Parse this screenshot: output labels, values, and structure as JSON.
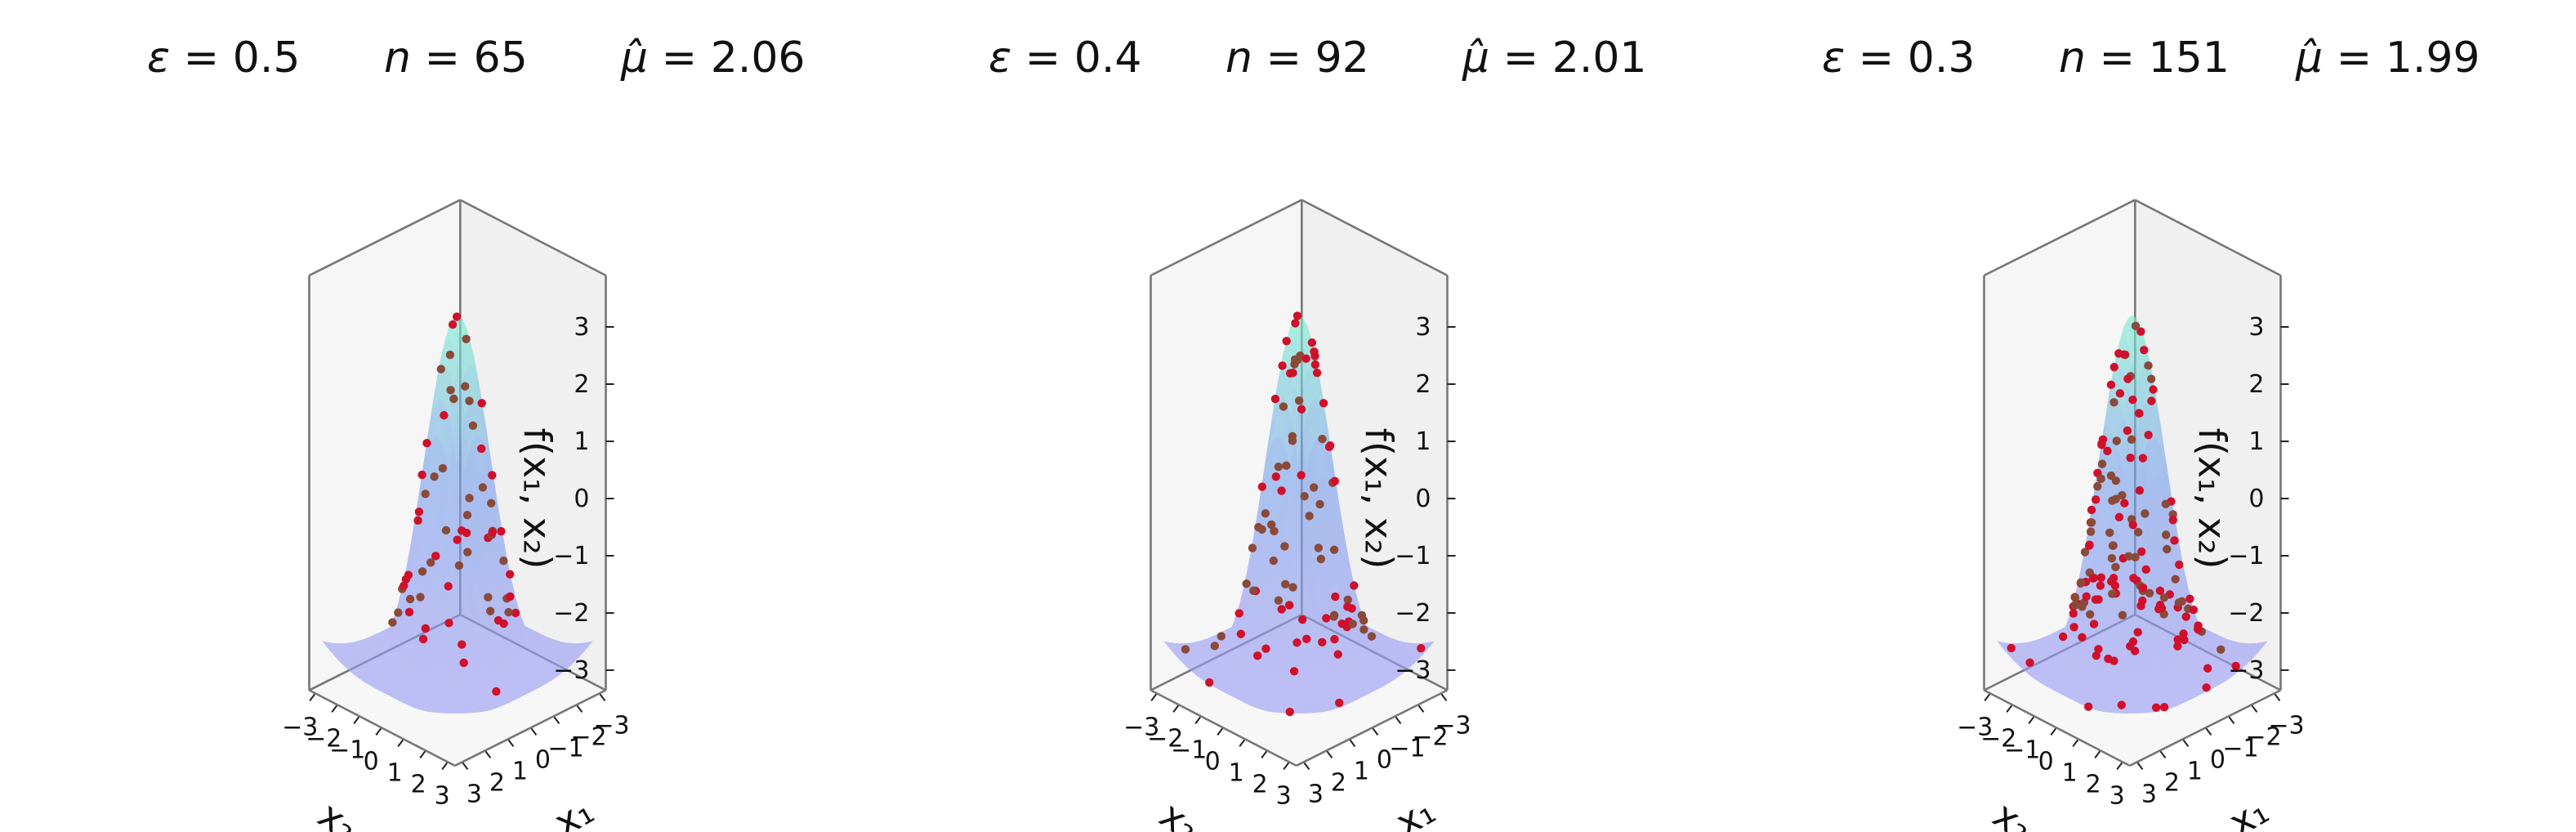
{
  "chart_data": [
    {
      "type": "surface3d",
      "title": {
        "eps": "0.5",
        "n": "65",
        "mu": "2.06"
      },
      "xlabel": "x₁",
      "ylabel": "x₂",
      "zlabel": "f(x₁, x₂)",
      "x_ticks": [
        "−3",
        "−2",
        "−1",
        "0",
        "1",
        "2",
        "3"
      ],
      "y_ticks": [
        "−3",
        "−2",
        "−1",
        "0",
        "1",
        "2",
        "3"
      ],
      "z_ticks": [
        "−3",
        "−2",
        "−1",
        "0",
        "1",
        "2",
        "3"
      ],
      "xlim": [
        -3,
        3
      ],
      "ylim": [
        -3,
        3
      ],
      "zlim": [
        -3.5,
        3.5
      ],
      "function": "3*exp(-(x1^2+x2^2)/2) - 1.5*(1-exp(-(x1^2+x2^2)/8)) approx.",
      "samples": 65,
      "seed": 11
    },
    {
      "type": "surface3d",
      "title": {
        "eps": "0.4",
        "n": "92",
        "mu": "2.01"
      },
      "xlabel": "x₁",
      "ylabel": "x₂",
      "zlabel": "f(x₁, x₂)",
      "x_ticks": [
        "−3",
        "−2",
        "−1",
        "0",
        "1",
        "2",
        "3"
      ],
      "y_ticks": [
        "−3",
        "−2",
        "−1",
        "0",
        "1",
        "2",
        "3"
      ],
      "z_ticks": [
        "−3",
        "−2",
        "−1",
        "0",
        "1",
        "2",
        "3"
      ],
      "xlim": [
        -3,
        3
      ],
      "ylim": [
        -3,
        3
      ],
      "zlim": [
        -3.5,
        3.5
      ],
      "samples": 92,
      "seed": 23
    },
    {
      "type": "surface3d",
      "title": {
        "eps": "0.3",
        "n": "151",
        "mu": "1.99"
      },
      "xlabel": "x₁",
      "ylabel": "x₂",
      "zlabel": "f(x₁, x₂)",
      "x_ticks": [
        "−3",
        "−2",
        "−1",
        "0",
        "1",
        "2",
        "3"
      ],
      "y_ticks": [
        "−3",
        "−2",
        "−1",
        "0",
        "1",
        "2",
        "3"
      ],
      "z_ticks": [
        "−3",
        "−2",
        "−1",
        "0",
        "1",
        "2",
        "3"
      ],
      "xlim": [
        -3,
        3
      ],
      "ylim": [
        -3,
        3
      ],
      "zlim": [
        -3.5,
        3.5
      ],
      "samples": 151,
      "seed": 37
    }
  ],
  "colors": {
    "surface_low": "#9a9cf4",
    "surface_mid": "#7aa2ec",
    "surface_high": "#7af0cf",
    "point": "#d0102a",
    "point_shadow": "#8a4a3a",
    "pane_left": "#f0f0f0",
    "pane_right": "#f6f6f6",
    "pane_edge": "#777777"
  }
}
